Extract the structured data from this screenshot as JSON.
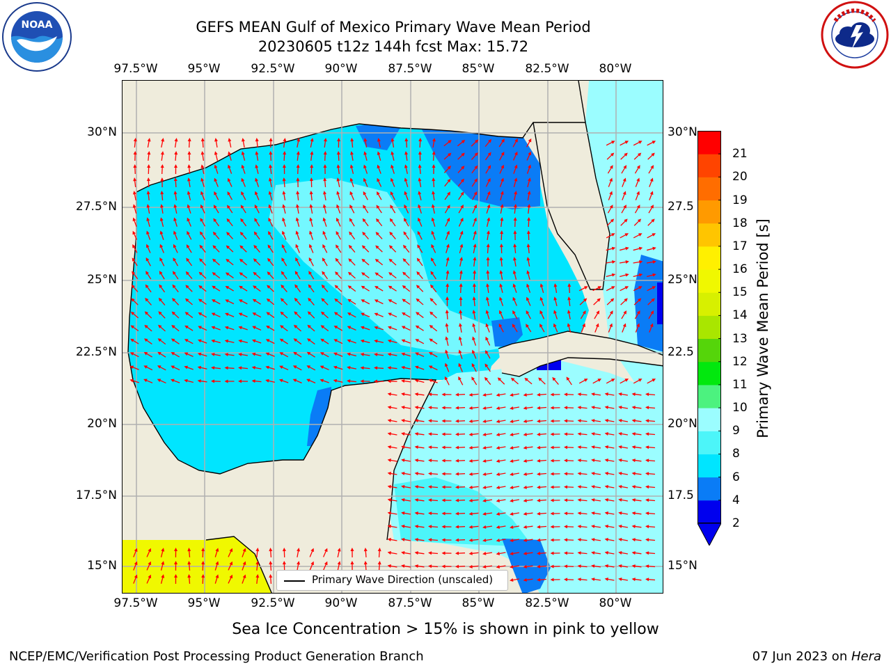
{
  "title": {
    "line1": "GEFS MEAN Gulf of Mexico Primary Wave Mean Period",
    "line2": "20230605 t12z 144h fcst   Max: 15.72"
  },
  "map": {
    "lon_ticks": [
      "97.5°W",
      "95°W",
      "92.5°W",
      "90°W",
      "87.5°W",
      "85°W",
      "82.5°W",
      "80°W"
    ],
    "lat_ticks_left": [
      "30°N",
      "27.5°N",
      "25°N",
      "22.5°N",
      "20°N",
      "17.5°N",
      "15°N"
    ],
    "lat_ticks_right": [
      "30°N",
      "27.5",
      "25°N",
      "22.5",
      "20°N",
      "17.5",
      "15°N"
    ],
    "colors": {
      "land": "#efecdc",
      "grid": "#b0b0b0",
      "arrow": "#ff0000",
      "coast": "#000000"
    },
    "legend_label": "Primary Wave Direction (unscaled)"
  },
  "colorbar": {
    "label": "Primary Wave Mean Period [s]",
    "tick_labels": [
      "2",
      "4",
      "6",
      "8",
      "9",
      "10",
      "11",
      "12",
      "13",
      "14",
      "15",
      "16",
      "17",
      "18",
      "19",
      "20",
      "21"
    ],
    "colors": [
      "#0000ee",
      "#0a7cf6",
      "#00e5ff",
      "#4cf5f9",
      "#9bfdff",
      "#4cf27f",
      "#02e80e",
      "#55d50a",
      "#a9e600",
      "#d7f000",
      "#f0f800",
      "#fff000",
      "#ffc500",
      "#ff9a00",
      "#ff6d00",
      "#ff4400",
      "#ff0000"
    ],
    "extend_color": "#0000ee"
  },
  "caption": "Sea Ice Concentration > 15% is shown in pink to yellow",
  "footer": {
    "left": "NCEP/EMC/Verification Post Processing Product Generation Branch",
    "date": "07 Jun 2023 on ",
    "machine": "Hera"
  },
  "logos": {
    "noaa_text": "NOAA",
    "noaa_ring": "NATIONAL OCEANIC AND ATMOSPHERIC ADMINISTRATION · U.S. DEPARTMENT OF COMMERCE",
    "nws_ring": "NATIONAL WEATHER SERVICE"
  }
}
